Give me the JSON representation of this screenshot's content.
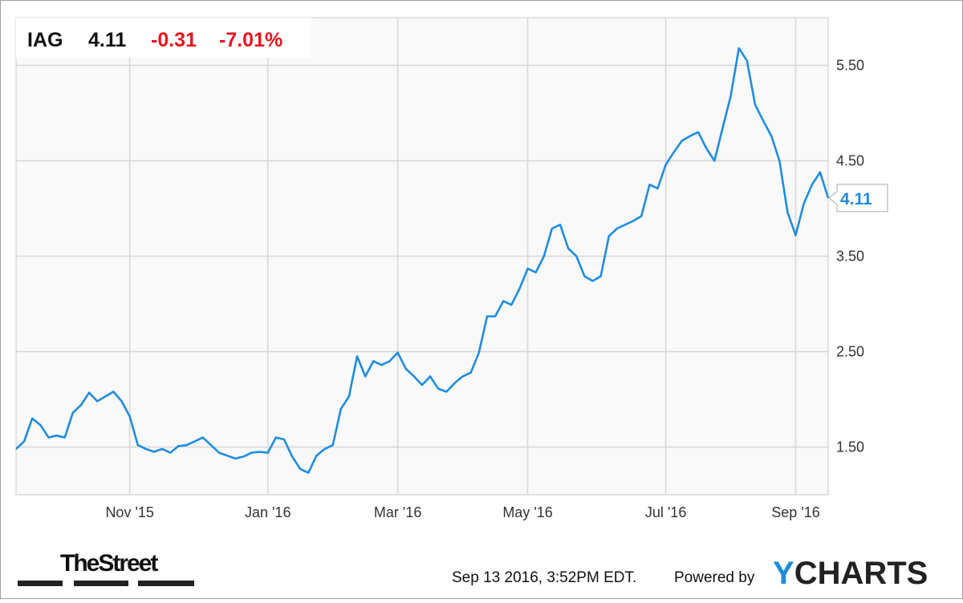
{
  "quote": {
    "symbol": "IAG",
    "price": 4.11,
    "change": -0.31,
    "change_percent": "-7.01%"
  },
  "chart_data": {
    "type": "line",
    "categories": [
      null,
      null,
      null,
      null,
      null,
      null,
      null,
      null,
      null,
      null,
      null,
      null,
      null,
      null,
      "Nov '15",
      null,
      null,
      null,
      null,
      null,
      null,
      null,
      null,
      null,
      null,
      null,
      null,
      null,
      null,
      null,
      null,
      "Jan '16",
      null,
      null,
      null,
      null,
      null,
      null,
      null,
      null,
      null,
      null,
      null,
      null,
      null,
      null,
      null,
      "Mar '16",
      null,
      null,
      null,
      null,
      null,
      null,
      null,
      null,
      null,
      null,
      null,
      null,
      null,
      null,
      null,
      "May '16",
      null,
      null,
      null,
      null,
      null,
      null,
      null,
      null,
      null,
      null,
      null,
      null,
      null,
      null,
      null,
      null,
      "Jul '16",
      null,
      null,
      null,
      null,
      null,
      null,
      null,
      null,
      null,
      null,
      null,
      null,
      null,
      null,
      null,
      "Sep '16",
      null,
      null,
      null,
      null
    ],
    "series": [
      {
        "name": "IAG",
        "color": "#1f8ce0",
        "values": [
          1.48,
          1.56,
          1.8,
          1.73,
          1.6,
          1.62,
          1.6,
          1.86,
          1.94,
          2.07,
          1.98,
          2.03,
          2.08,
          1.98,
          1.82,
          1.52,
          1.48,
          1.45,
          1.48,
          1.44,
          1.51,
          1.52,
          1.56,
          1.6,
          1.52,
          1.44,
          1.41,
          1.38,
          1.4,
          1.44,
          1.45,
          1.44,
          1.6,
          1.58,
          1.4,
          1.27,
          1.23,
          1.41,
          1.48,
          1.52,
          1.9,
          2.03,
          2.45,
          2.24,
          2.4,
          2.36,
          2.4,
          2.49,
          2.32,
          2.24,
          2.15,
          2.24,
          2.11,
          2.08,
          2.17,
          2.24,
          2.28,
          2.49,
          2.87,
          2.87,
          3.03,
          2.99,
          3.16,
          3.37,
          3.33,
          3.5,
          3.79,
          3.83,
          3.58,
          3.5,
          3.29,
          3.24,
          3.29,
          3.71,
          3.79,
          3.83,
          3.87,
          3.92,
          4.25,
          4.21,
          4.46,
          4.59,
          4.71,
          4.76,
          4.8,
          4.63,
          4.5,
          4.84,
          5.18,
          5.68,
          5.55,
          5.09,
          4.92,
          4.76,
          4.5,
          3.96,
          3.72,
          4.05,
          4.25,
          4.38,
          4.11
        ]
      }
    ],
    "ylim": [
      1.0,
      6.0
    ],
    "yticks": [
      {
        "value": 1.5,
        "label": "1.50"
      },
      {
        "value": 2.5,
        "label": "2.50"
      },
      {
        "value": 3.5,
        "label": "3.50"
      },
      {
        "value": 4.5,
        "label": "4.50"
      },
      {
        "value": 5.5,
        "label": "5.50"
      }
    ],
    "grid": true
  },
  "footer": {
    "source_logo": "TheStreet",
    "timestamp": "Sep 13 2016, 3:52PM EDT.",
    "powered_by": "Powered by",
    "brand": {
      "accent": "Y",
      "rest": "CHARTS"
    }
  }
}
